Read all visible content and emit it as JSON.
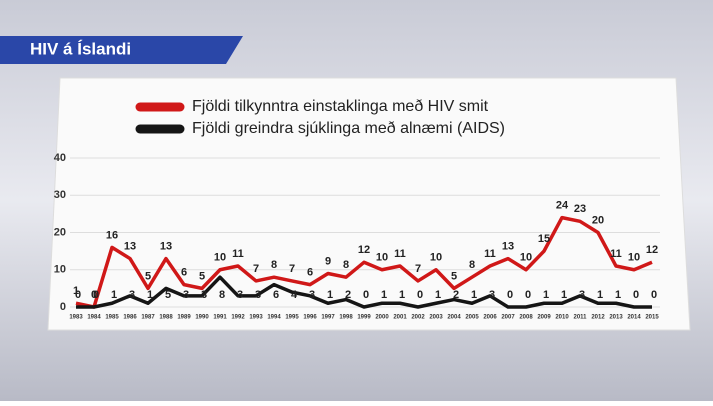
{
  "chart_data": {
    "type": "line",
    "title": "HIV á Íslandi",
    "categories": [
      "1983",
      "1984",
      "1985",
      "1986",
      "1987",
      "1988",
      "1989",
      "1990",
      "1991",
      "1992",
      "1993",
      "1994",
      "1995",
      "1996",
      "1997",
      "1998",
      "1999",
      "2000",
      "2001",
      "2002",
      "2003",
      "2004",
      "2005",
      "2006",
      "2007",
      "2008",
      "2009",
      "2010",
      "2011",
      "2012",
      "2013",
      "2014",
      "2015"
    ],
    "series": [
      {
        "name": "Fjöldi tilkynntra einstaklinga með HIV smit",
        "color": "#d01818",
        "values": [
          1,
          0,
          16,
          13,
          5,
          13,
          6,
          5,
          10,
          11,
          7,
          8,
          7,
          6,
          9,
          8,
          12,
          10,
          11,
          7,
          10,
          5,
          8,
          11,
          13,
          10,
          15,
          24,
          23,
          20,
          11,
          10,
          12
        ]
      },
      {
        "name": "Fjöldi greindra sjúklinga með alnæmi (AIDS)",
        "color": "#151515",
        "values": [
          0,
          0,
          1,
          3,
          1,
          5,
          3,
          3,
          8,
          3,
          3,
          6,
          4,
          3,
          1,
          2,
          0,
          1,
          1,
          0,
          1,
          2,
          1,
          3,
          0,
          0,
          1,
          1,
          3,
          1,
          1,
          0,
          0
        ]
      }
    ],
    "ylim": [
      0,
      40
    ],
    "yticks": [
      0,
      10,
      20,
      30,
      40
    ],
    "grid": true
  }
}
